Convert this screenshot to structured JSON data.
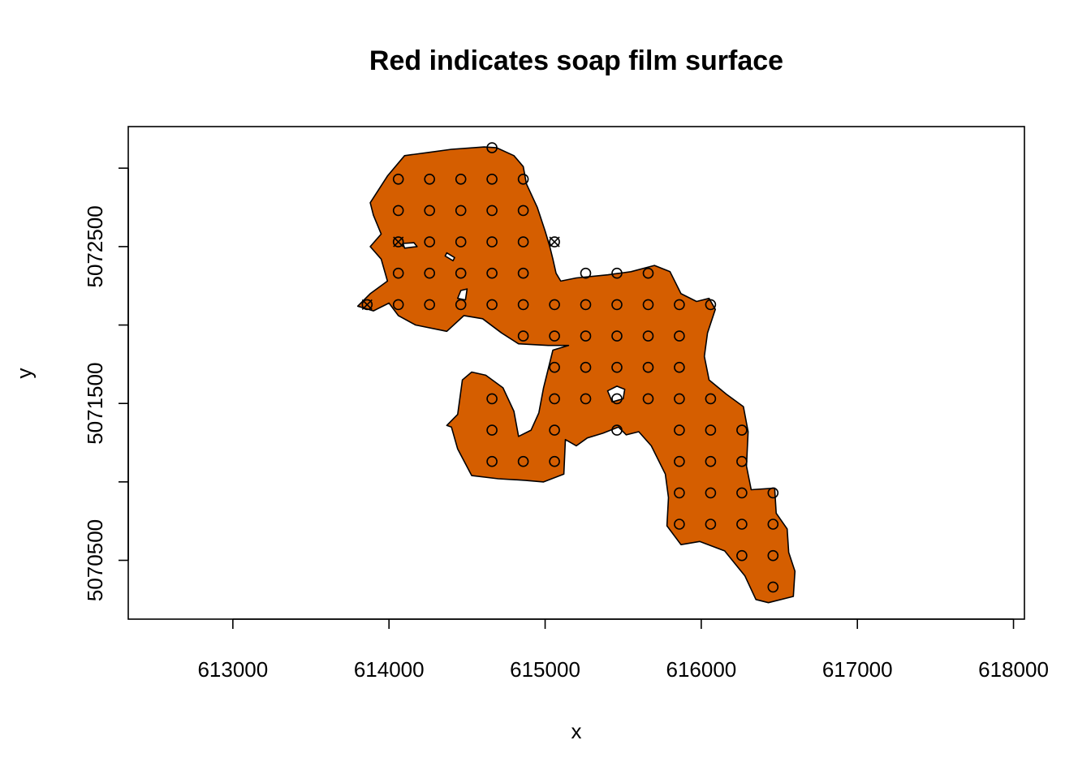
{
  "chart_data": {
    "type": "scatter",
    "title": "Red indicates soap film surface",
    "xlabel": "x",
    "ylabel": "y",
    "xlim": [
      612330,
      618070
    ],
    "ylim": [
      5070125,
      5073265
    ],
    "x_ticks": [
      613000,
      614000,
      615000,
      616000,
      617000,
      618000
    ],
    "y_ticks": [
      5070500,
      5071000,
      5071500,
      5072000,
      5072500,
      5073000
    ],
    "y_tick_labels": [
      "5070500",
      "",
      "5071500",
      "",
      "5072500",
      ""
    ],
    "x_tick_labels": [
      "613000",
      "614000",
      "615000",
      "616000",
      "617000",
      "618000"
    ],
    "grid": false,
    "fill_color": "#D55E00",
    "boundary": [
      [
        614610,
        5073135
      ],
      [
        614690,
        5073130
      ],
      [
        614800,
        5073080
      ],
      [
        614860,
        5073010
      ],
      [
        614880,
        5072900
      ],
      [
        614950,
        5072750
      ],
      [
        615000,
        5072600
      ],
      [
        615030,
        5072500
      ],
      [
        615050,
        5072420
      ],
      [
        615070,
        5072330
      ],
      [
        615100,
        5072280
      ],
      [
        615200,
        5072300
      ],
      [
        615400,
        5072320
      ],
      [
        615550,
        5072340
      ],
      [
        615700,
        5072380
      ],
      [
        615800,
        5072340
      ],
      [
        615870,
        5072200
      ],
      [
        615970,
        5072150
      ],
      [
        616050,
        5072170
      ],
      [
        616090,
        5072100
      ],
      [
        616040,
        5071950
      ],
      [
        616020,
        5071800
      ],
      [
        616050,
        5071650
      ],
      [
        616160,
        5071560
      ],
      [
        616270,
        5071480
      ],
      [
        616300,
        5071320
      ],
      [
        616290,
        5071100
      ],
      [
        616320,
        5070950
      ],
      [
        616470,
        5070960
      ],
      [
        616480,
        5070800
      ],
      [
        616550,
        5070700
      ],
      [
        616560,
        5070550
      ],
      [
        616600,
        5070430
      ],
      [
        616590,
        5070270
      ],
      [
        616430,
        5070230
      ],
      [
        616350,
        5070250
      ],
      [
        616280,
        5070400
      ],
      [
        616150,
        5070560
      ],
      [
        615990,
        5070620
      ],
      [
        615870,
        5070600
      ],
      [
        615780,
        5070720
      ],
      [
        615790,
        5070900
      ],
      [
        615770,
        5071050
      ],
      [
        615680,
        5071230
      ],
      [
        615600,
        5071320
      ],
      [
        615520,
        5071300
      ],
      [
        615470,
        5071350
      ],
      [
        615370,
        5071310
      ],
      [
        615270,
        5071280
      ],
      [
        615200,
        5071230
      ],
      [
        615130,
        5071270
      ],
      [
        615120,
        5071050
      ],
      [
        614990,
        5071000
      ],
      [
        614870,
        5071010
      ],
      [
        614700,
        5071020
      ],
      [
        614530,
        5071040
      ],
      [
        614440,
        5071210
      ],
      [
        614400,
        5071350
      ],
      [
        614370,
        5071360
      ],
      [
        614440,
        5071430
      ],
      [
        614470,
        5071650
      ],
      [
        614530,
        5071700
      ],
      [
        614620,
        5071680
      ],
      [
        614730,
        5071600
      ],
      [
        614800,
        5071450
      ],
      [
        614830,
        5071290
      ],
      [
        614910,
        5071330
      ],
      [
        614960,
        5071440
      ],
      [
        614990,
        5071600
      ],
      [
        615050,
        5071840
      ],
      [
        615150,
        5071870
      ],
      [
        615020,
        5071870
      ],
      [
        614830,
        5071880
      ],
      [
        614720,
        5071950
      ],
      [
        614600,
        5072040
      ],
      [
        614480,
        5072060
      ],
      [
        614370,
        5071960
      ],
      [
        614170,
        5072000
      ],
      [
        614060,
        5072060
      ],
      [
        614000,
        5072140
      ],
      [
        613900,
        5072090
      ],
      [
        613800,
        5072120
      ],
      [
        613880,
        5072200
      ],
      [
        613990,
        5072280
      ],
      [
        613950,
        5072420
      ],
      [
        613880,
        5072500
      ],
      [
        613950,
        5072580
      ],
      [
        613900,
        5072700
      ],
      [
        613880,
        5072780
      ],
      [
        613990,
        5072950
      ],
      [
        614100,
        5073080
      ],
      [
        614250,
        5073100
      ],
      [
        614400,
        5073120
      ]
    ],
    "holes": [
      [
        [
          614090,
          5072520
        ],
        [
          614160,
          5072525
        ],
        [
          614180,
          5072500
        ],
        [
          614100,
          5072490
        ]
      ],
      [
        [
          614370,
          5072460
        ],
        [
          614420,
          5072430
        ],
        [
          614410,
          5072410
        ],
        [
          614360,
          5072440
        ]
      ],
      [
        [
          614460,
          5072220
        ],
        [
          614500,
          5072230
        ],
        [
          614490,
          5072160
        ],
        [
          614440,
          5072170
        ]
      ],
      [
        [
          615400,
          5071580
        ],
        [
          615460,
          5071610
        ],
        [
          615510,
          5071590
        ],
        [
          615500,
          5071530
        ],
        [
          615430,
          5071510
        ]
      ]
    ],
    "points": [
      [
        614660,
        5073130
      ],
      [
        614060,
        5072930
      ],
      [
        614260,
        5072930
      ],
      [
        614460,
        5072930
      ],
      [
        614660,
        5072930
      ],
      [
        614860,
        5072930
      ],
      [
        614060,
        5072730
      ],
      [
        614260,
        5072730
      ],
      [
        614460,
        5072730
      ],
      [
        614660,
        5072730
      ],
      [
        614860,
        5072730
      ],
      [
        614060,
        5072530
      ],
      [
        614260,
        5072530
      ],
      [
        614460,
        5072530
      ],
      [
        614660,
        5072530
      ],
      [
        614860,
        5072530
      ],
      [
        615060,
        5072530
      ],
      [
        614060,
        5072330
      ],
      [
        614260,
        5072330
      ],
      [
        614460,
        5072330
      ],
      [
        614660,
        5072330
      ],
      [
        614860,
        5072330
      ],
      [
        615260,
        5072330
      ],
      [
        615460,
        5072330
      ],
      [
        615660,
        5072330
      ],
      [
        613860,
        5072130
      ],
      [
        614060,
        5072130
      ],
      [
        614260,
        5072130
      ],
      [
        614460,
        5072130
      ],
      [
        614660,
        5072130
      ],
      [
        614860,
        5072130
      ],
      [
        615060,
        5072130
      ],
      [
        615260,
        5072130
      ],
      [
        615460,
        5072130
      ],
      [
        615660,
        5072130
      ],
      [
        615860,
        5072130
      ],
      [
        616060,
        5072130
      ],
      [
        614860,
        5071930
      ],
      [
        615060,
        5071930
      ],
      [
        615260,
        5071930
      ],
      [
        615460,
        5071930
      ],
      [
        615660,
        5071930
      ],
      [
        615860,
        5071930
      ],
      [
        615060,
        5071730
      ],
      [
        615260,
        5071730
      ],
      [
        615460,
        5071730
      ],
      [
        615660,
        5071730
      ],
      [
        615860,
        5071730
      ],
      [
        614660,
        5071530
      ],
      [
        615060,
        5071530
      ],
      [
        615260,
        5071530
      ],
      [
        615460,
        5071530
      ],
      [
        615660,
        5071530
      ],
      [
        615860,
        5071530
      ],
      [
        616060,
        5071530
      ],
      [
        614660,
        5071330
      ],
      [
        615060,
        5071330
      ],
      [
        615460,
        5071330
      ],
      [
        615860,
        5071330
      ],
      [
        616060,
        5071330
      ],
      [
        616260,
        5071330
      ],
      [
        614660,
        5071130
      ],
      [
        614860,
        5071130
      ],
      [
        615060,
        5071130
      ],
      [
        615860,
        5071130
      ],
      [
        616060,
        5071130
      ],
      [
        616260,
        5071130
      ],
      [
        615860,
        5070930
      ],
      [
        616060,
        5070930
      ],
      [
        616260,
        5070930
      ],
      [
        616460,
        5070930
      ],
      [
        615860,
        5070730
      ],
      [
        616060,
        5070730
      ],
      [
        616260,
        5070730
      ],
      [
        616460,
        5070730
      ],
      [
        616260,
        5070530
      ],
      [
        616460,
        5070530
      ],
      [
        616460,
        5070330
      ]
    ],
    "crossed_points": [
      [
        614060,
        5072530
      ],
      [
        615060,
        5072530
      ],
      [
        613860,
        5072130
      ]
    ]
  }
}
